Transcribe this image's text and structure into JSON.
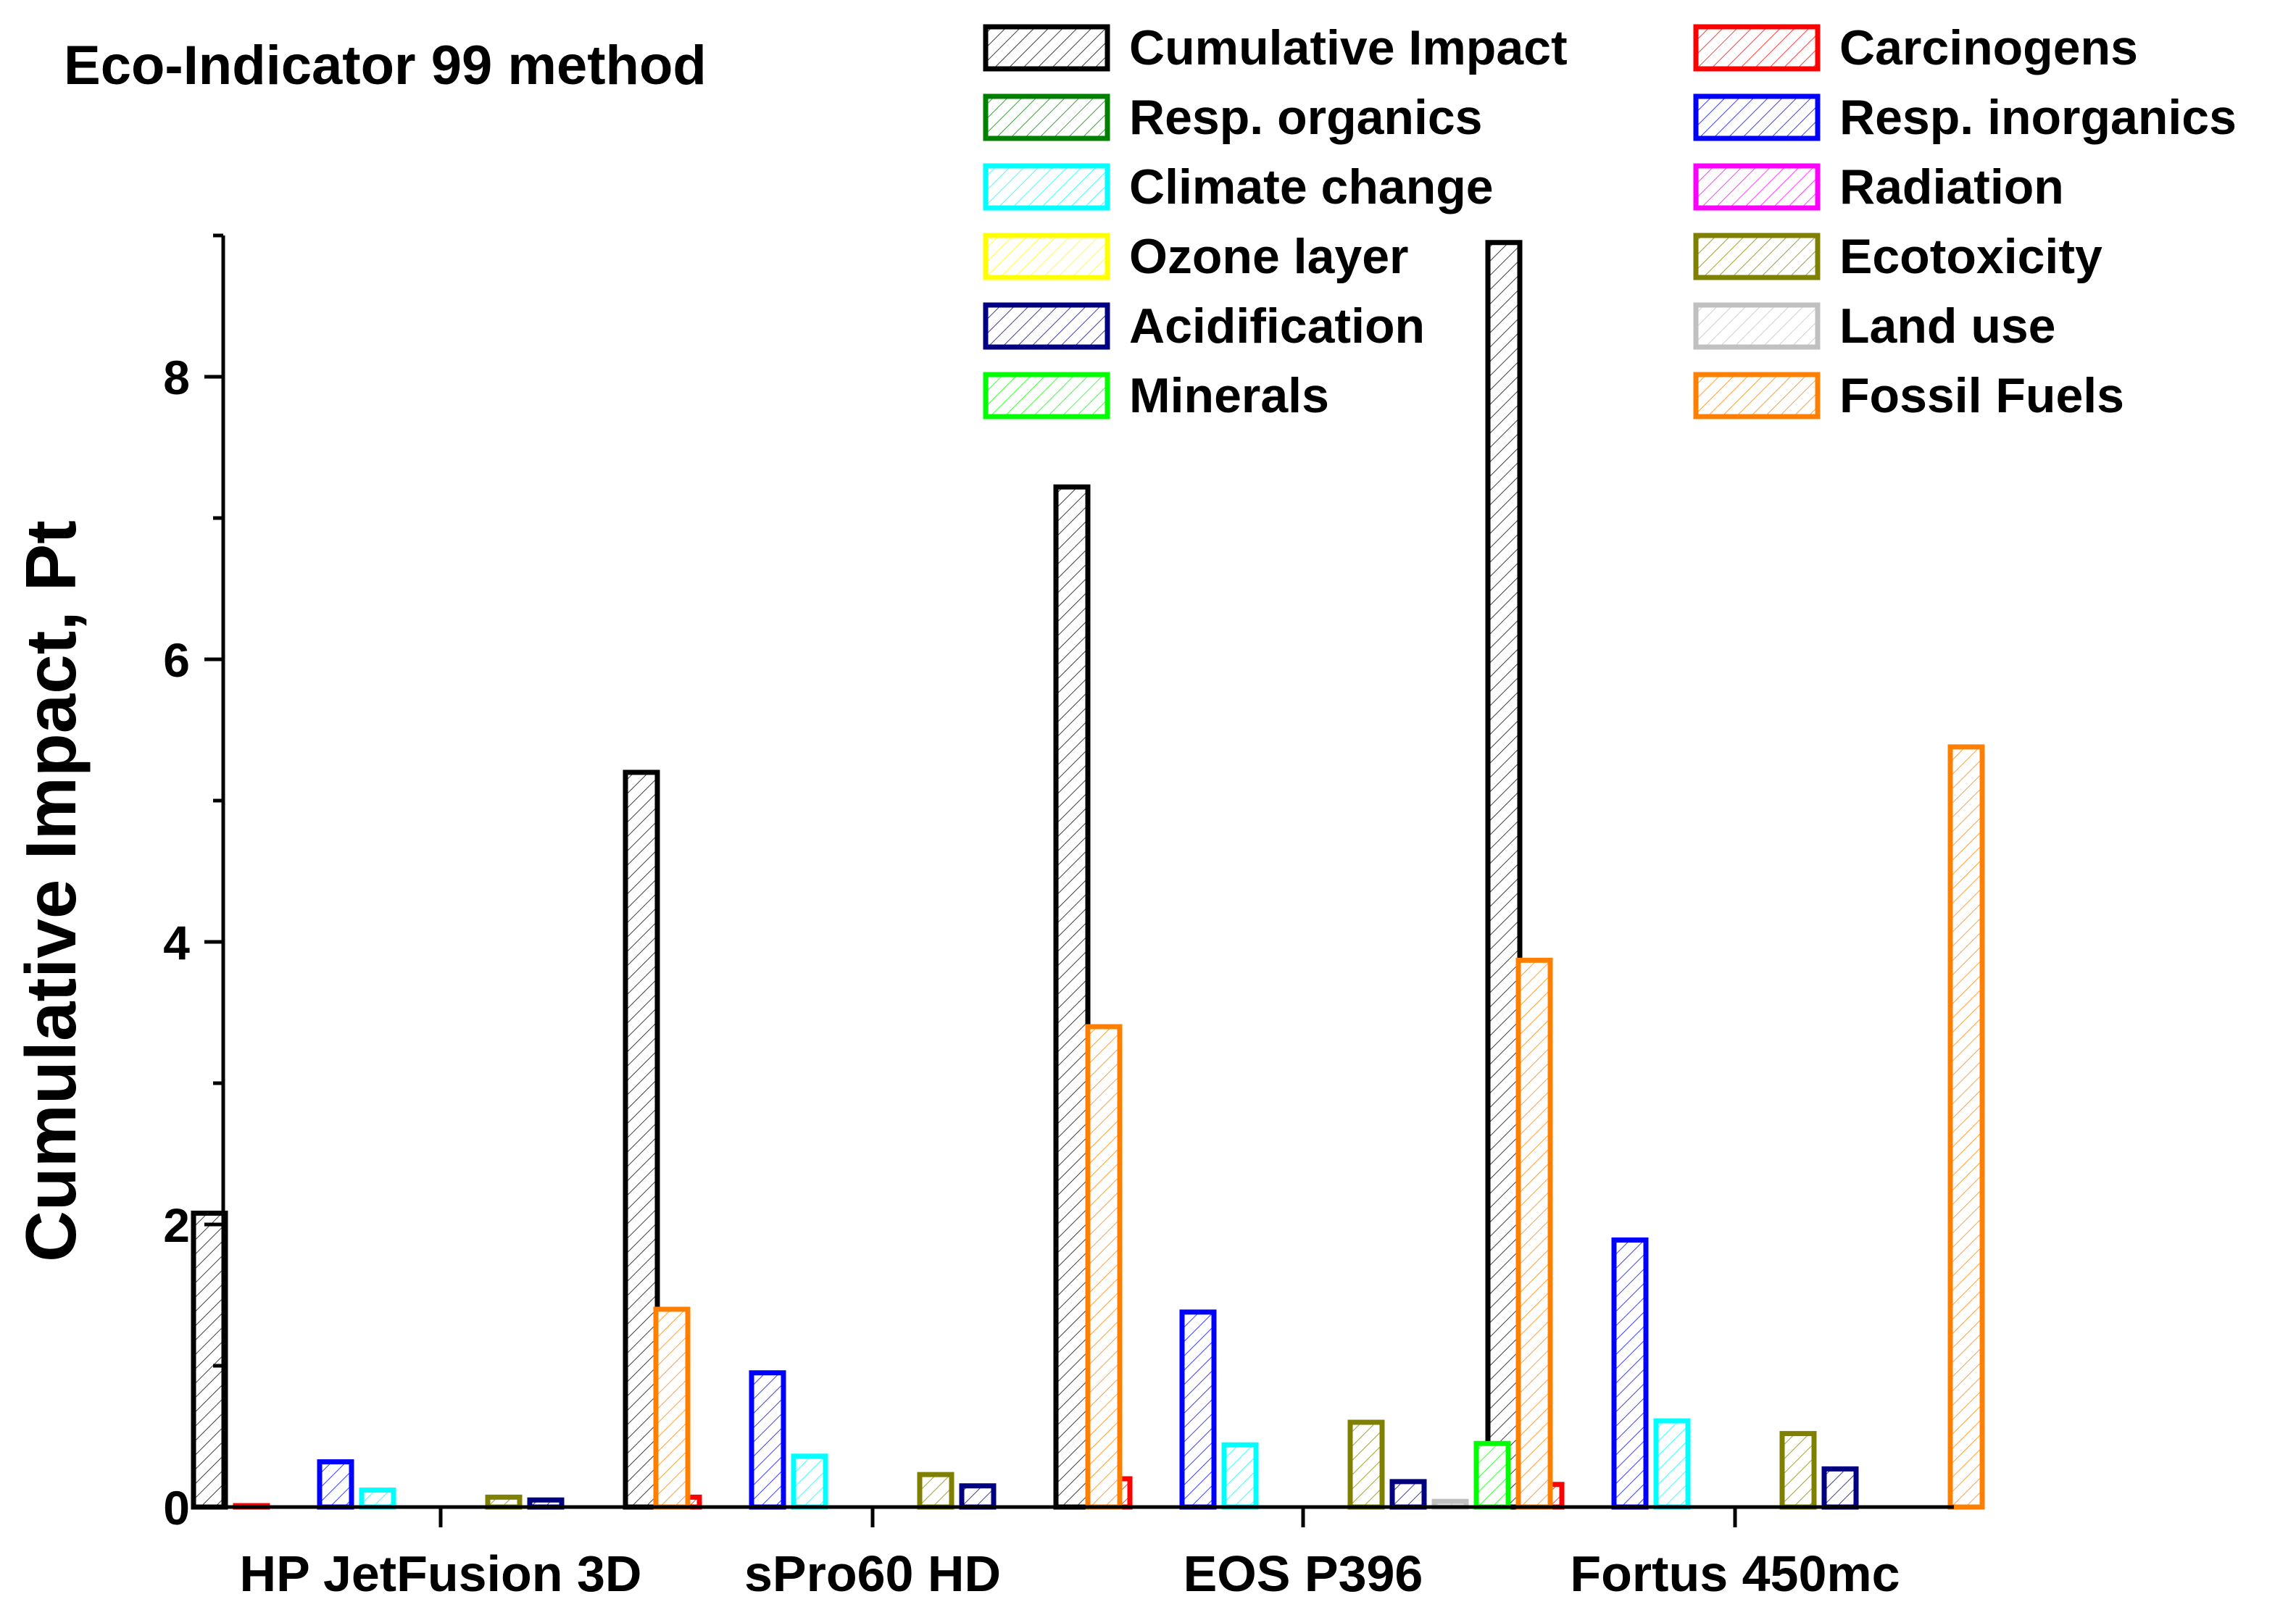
{
  "chart_data": {
    "type": "bar",
    "title": "Eco-Indicator 99 method",
    "xlabel": "",
    "ylabel": "Cumulative Impact, Pt",
    "ylim": [
      0,
      9
    ],
    "y_ticks": [
      "0",
      "2",
      "4",
      "6",
      "8"
    ],
    "legend_position": "top-right",
    "categories": [
      "HP JetFusion 3D",
      "sPro60 HD",
      "EOS P396",
      "Fortus 450mc"
    ],
    "series": [
      {
        "name": "Cumulative Impact",
        "color": "#000000",
        "values": [
          2.08,
          5.2,
          7.22,
          8.95
        ]
      },
      {
        "name": "Carcinogens",
        "color": "#ff0000",
        "values": [
          0.01,
          0.07,
          0.2,
          0.16
        ]
      },
      {
        "name": "Resp. organics",
        "color": "#008000",
        "values": [
          0,
          0,
          0,
          0
        ]
      },
      {
        "name": "Resp. inorganics",
        "color": "#0000ff",
        "values": [
          0.32,
          0.95,
          1.38,
          1.89
        ]
      },
      {
        "name": "Climate change",
        "color": "#00ffff",
        "values": [
          0.12,
          0.36,
          0.44,
          0.61
        ]
      },
      {
        "name": "Radiation",
        "color": "#ff00ff",
        "values": [
          0,
          0,
          0,
          0
        ]
      },
      {
        "name": "Ozone layer",
        "color": "#ffff00",
        "values": [
          0,
          0,
          0,
          0
        ]
      },
      {
        "name": "Ecotoxicity",
        "color": "#808000",
        "values": [
          0.07,
          0.23,
          0.6,
          0.52
        ]
      },
      {
        "name": "Acidification",
        "color": "#000080",
        "values": [
          0.05,
          0.15,
          0.18,
          0.27
        ]
      },
      {
        "name": "Land use",
        "color": "#c0c0c0",
        "values": [
          0,
          0,
          0.04,
          0
        ]
      },
      {
        "name": "Minerals",
        "color": "#00ff00",
        "values": [
          0,
          0,
          0.45,
          0
        ]
      },
      {
        "name": "Fossil Fuels",
        "color": "#ff8000",
        "values": [
          1.4,
          3.4,
          3.87,
          5.38
        ]
      }
    ]
  }
}
